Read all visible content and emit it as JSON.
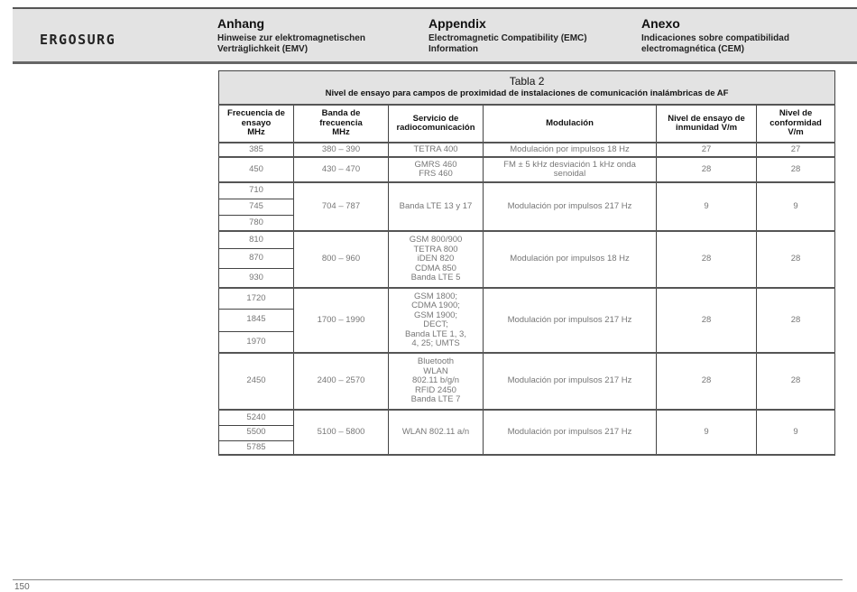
{
  "header": {
    "logo": "ERGOSURG",
    "columns": [
      {
        "title": "Anhang",
        "subtitle_lines": [
          "Hinweise zur elektromagnetischen",
          "Verträglichkeit (EMV)"
        ]
      },
      {
        "title": "Appendix",
        "subtitle_lines": [
          "Electromagnetic Compatibility (EMC)",
          "Information"
        ]
      },
      {
        "title": "Anexo",
        "subtitle_lines": [
          "Indicaciones sobre compatibilidad",
          "electromagnética (CEM)"
        ]
      }
    ]
  },
  "table": {
    "title": "Tabla 2",
    "subtitle": "Nivel de ensayo para campos de proximidad de instalaciones de comunicación inalámbricas de AF",
    "columns": [
      [
        "Frecuencia de",
        "ensayo",
        "MHz"
      ],
      [
        "Banda de",
        "frecuencia",
        "MHz"
      ],
      [
        "Servicio de",
        "radiocomunicación"
      ],
      [
        "Modulación"
      ],
      [
        "Nivel de ensayo de",
        "inmunidad V/m"
      ],
      [
        "Nivel de",
        "conformidad",
        "V/m"
      ]
    ],
    "groups": [
      {
        "frequencies": [
          "385"
        ],
        "band": "380 – 390",
        "service": [
          "TETRA 400"
        ],
        "modulation": [
          "Modulación por impulsos 18 Hz"
        ],
        "immunity": "27",
        "compliance": "27"
      },
      {
        "frequencies": [
          "450"
        ],
        "band": "430 – 470",
        "service": [
          "GMRS 460",
          "FRS 460"
        ],
        "modulation": [
          "FM ± 5 kHz desviación 1 kHz onda",
          "senoidal"
        ],
        "immunity": "28",
        "compliance": "28"
      },
      {
        "frequencies": [
          "710",
          "745",
          "780"
        ],
        "band": "704 – 787",
        "service": [
          "Banda LTE 13 y 17"
        ],
        "modulation": [
          "Modulación por impulsos 217 Hz"
        ],
        "immunity": "9",
        "compliance": "9"
      },
      {
        "frequencies": [
          "810",
          "870",
          "930"
        ],
        "band": "800 – 960",
        "service": [
          "GSM 800/900",
          "TETRA 800",
          "iDEN 820",
          "CDMA 850",
          "Banda LTE 5"
        ],
        "modulation": [
          "Modulación por impulsos 18 Hz"
        ],
        "immunity": "28",
        "compliance": "28"
      },
      {
        "frequencies": [
          "1720",
          "1845",
          "1970"
        ],
        "band": "1700 – 1990",
        "service": [
          "GSM 1800;",
          "CDMA 1900;",
          "GSM 1900;",
          "DECT;",
          "Banda LTE 1, 3,",
          "4, 25; UMTS"
        ],
        "modulation": [
          "Modulación por impulsos 217 Hz"
        ],
        "immunity": "28",
        "compliance": "28"
      },
      {
        "frequencies": [
          "2450"
        ],
        "band": "2400 – 2570",
        "service": [
          "Bluetooth",
          "WLAN",
          "802.11 b/g/n",
          "RFID 2450",
          "Banda LTE 7"
        ],
        "modulation": [
          "Modulación por impulsos 217 Hz"
        ],
        "immunity": "28",
        "compliance": "28"
      },
      {
        "frequencies": [
          "5240",
          "5500",
          "5785"
        ],
        "band": "5100 – 5800",
        "service": [
          "WLAN 802.11 a/n"
        ],
        "modulation": [
          "Modulación por impulsos 217 Hz"
        ],
        "immunity": "9",
        "compliance": "9"
      }
    ]
  },
  "footer": {
    "page_number": "150"
  }
}
